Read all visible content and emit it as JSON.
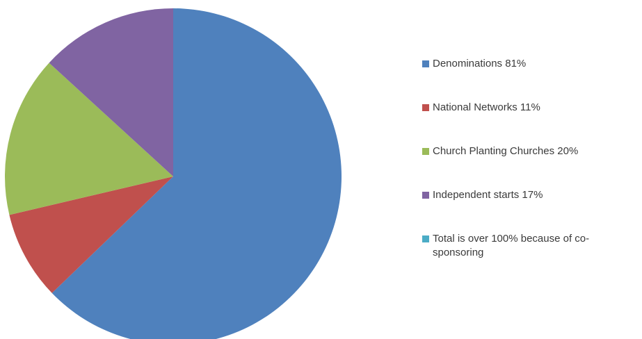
{
  "chart_data": {
    "type": "pie",
    "start_angle_deg": 0,
    "direction": "clockwise",
    "slices": [
      {
        "label": "Denominations 81%",
        "value": 63.3,
        "color": "#4f81bd"
      },
      {
        "label": "National Networks 11%",
        "value": 8.6,
        "color": "#c0504d"
      },
      {
        "label": "Church Planting Churches 20%",
        "value": 15.6,
        "color": "#9bbb59"
      },
      {
        "label": "Independent starts 17%",
        "value": 13.3,
        "color": "#8064a2"
      }
    ],
    "legend": {
      "placement": "right",
      "entries": [
        {
          "label": "Denominations 81%",
          "color": "#4f81bd"
        },
        {
          "label": "National Networks 11%",
          "color": "#c0504d"
        },
        {
          "label": "Church Planting Churches 20%",
          "color": "#9bbb59"
        },
        {
          "label": "Independent starts 17%",
          "color": "#8064a2"
        },
        {
          "label": "Total is over 100% because of co-sponsoring",
          "color": "#4bacc6"
        }
      ]
    }
  }
}
